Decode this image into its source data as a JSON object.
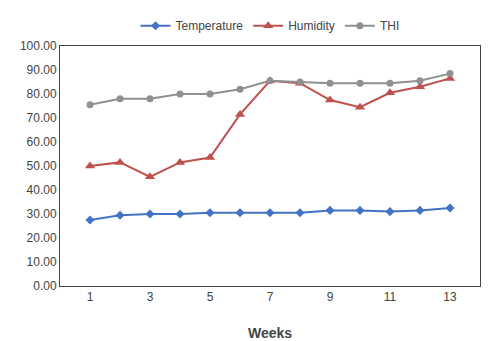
{
  "chart_data": {
    "type": "line",
    "x_label": "Weeks",
    "x": [
      1,
      2,
      3,
      4,
      5,
      6,
      7,
      8,
      9,
      10,
      11,
      12,
      13
    ],
    "series": [
      {
        "name": "Temperature",
        "color": "#4472C4",
        "marker": "diamond",
        "values": [
          27.5,
          29.5,
          30.0,
          30.0,
          30.5,
          30.5,
          30.5,
          30.5,
          31.5,
          31.5,
          31.0,
          31.5,
          32.5
        ]
      },
      {
        "name": "Humidity",
        "color": "#C0504D",
        "marker": "triangle-up",
        "values": [
          50.0,
          51.5,
          45.5,
          51.5,
          53.5,
          71.5,
          85.5,
          84.5,
          77.5,
          74.5,
          80.5,
          83.0,
          86.5
        ]
      },
      {
        "name": "THI",
        "color": "#909090",
        "marker": "circle",
        "values": [
          75.5,
          78.0,
          78.0,
          80.0,
          80.0,
          82.0,
          85.5,
          85.0,
          84.5,
          84.5,
          84.5,
          85.5,
          88.5
        ]
      }
    ],
    "xlim": [
      0,
      14
    ],
    "xticks": [
      1,
      3,
      5,
      7,
      9,
      11,
      13
    ],
    "ylim": [
      0,
      100
    ],
    "yticks": [
      {
        "value": 0,
        "label": "0.00"
      },
      {
        "value": 10,
        "label": "10.00"
      },
      {
        "value": 20,
        "label": "20.00"
      },
      {
        "value": 30,
        "label": "30.00"
      },
      {
        "value": 40,
        "label": "40.00"
      },
      {
        "value": 50,
        "label": "50.00"
      },
      {
        "value": 60,
        "label": "60.00"
      },
      {
        "value": 70,
        "label": "70.00"
      },
      {
        "value": 80,
        "label": "80.00"
      },
      {
        "value": 90,
        "label": "90.00"
      },
      {
        "value": 100,
        "label": "100.00"
      }
    ],
    "grid": false,
    "legend": "top"
  }
}
